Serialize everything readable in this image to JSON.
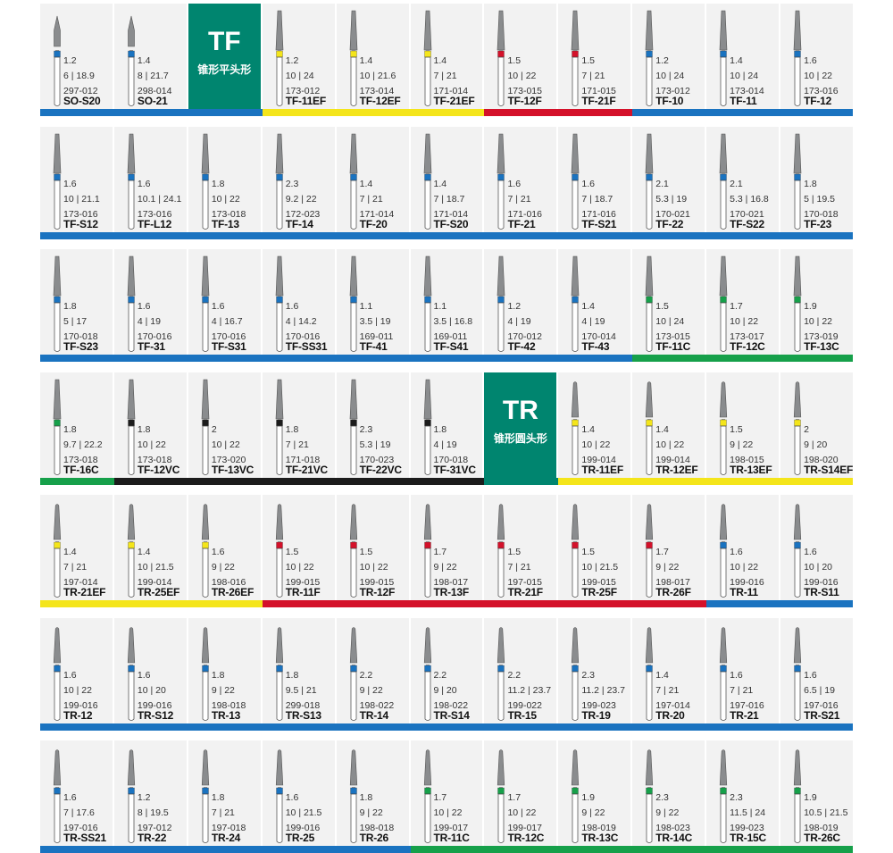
{
  "colors": {
    "blue": "#1a73c0",
    "yellow": "#f4e51b",
    "red": "#d4112a",
    "green": "#16a04a",
    "black": "#1c1c1c",
    "teal": "#00856f"
  },
  "banners": {
    "tf": {
      "title": "TF",
      "subtitle": "锥形平头形"
    },
    "tr": {
      "title": "TR",
      "subtitle": "锥形圆头形"
    }
  },
  "rows": [
    {
      "bars": [
        {
          "color": "blue",
          "span": 3
        },
        {
          "color": "yellow",
          "span": 3
        },
        {
          "color": "red",
          "span": 2
        },
        {
          "color": "blue",
          "span": 3
        }
      ],
      "cells": [
        {
          "type": "bur",
          "shape": "cone",
          "band": "blue",
          "size": "1.2",
          "dims": "6 | 18.9",
          "ref": "297-012",
          "code": "SO-S20"
        },
        {
          "type": "bur",
          "shape": "cone",
          "band": "blue",
          "size": "1.4",
          "dims": "8 | 21.7",
          "ref": "298-014",
          "code": "SO-21"
        },
        {
          "type": "banner",
          "key": "tf"
        },
        {
          "type": "bur",
          "shape": "taper",
          "band": "yellow",
          "size": "1.2",
          "dims": "10 | 24",
          "ref": "173-012",
          "code": "TF-11EF"
        },
        {
          "type": "bur",
          "shape": "taper",
          "band": "yellow",
          "size": "1.4",
          "dims": "10 | 21.6",
          "ref": "173-014",
          "code": "TF-12EF"
        },
        {
          "type": "bur",
          "shape": "taper",
          "band": "yellow",
          "size": "1.4",
          "dims": "7 | 21",
          "ref": "171-014",
          "code": "TF-21EF"
        },
        {
          "type": "bur",
          "shape": "taper",
          "band": "red",
          "size": "1.5",
          "dims": "10 | 22",
          "ref": "173-015",
          "code": "TF-12F"
        },
        {
          "type": "bur",
          "shape": "taper",
          "band": "red",
          "size": "1.5",
          "dims": "7 | 21",
          "ref": "171-015",
          "code": "TF-21F"
        },
        {
          "type": "bur",
          "shape": "taper",
          "band": "blue",
          "size": "1.2",
          "dims": "10 | 24",
          "ref": "173-012",
          "code": "TF-10"
        },
        {
          "type": "bur",
          "shape": "taper",
          "band": "blue",
          "size": "1.4",
          "dims": "10 | 24",
          "ref": "173-014",
          "code": "TF-11"
        },
        {
          "type": "bur",
          "shape": "taper",
          "band": "blue",
          "size": "1.6",
          "dims": "10 | 22",
          "ref": "173-016",
          "code": "TF-12"
        }
      ]
    },
    {
      "bars": [
        {
          "color": "blue",
          "span": 11
        }
      ],
      "cells": [
        {
          "type": "bur",
          "shape": "taper",
          "band": "blue",
          "size": "1.6",
          "dims": "10 | 21.1",
          "ref": "173-016",
          "code": "TF-S12"
        },
        {
          "type": "bur",
          "shape": "taper",
          "band": "blue",
          "size": "1.6",
          "dims": "10.1 | 24.1",
          "ref": "173-016",
          "code": "TF-L12"
        },
        {
          "type": "bur",
          "shape": "taper",
          "band": "blue",
          "size": "1.8",
          "dims": "10 | 22",
          "ref": "173-018",
          "code": "TF-13"
        },
        {
          "type": "bur",
          "shape": "taper",
          "band": "blue",
          "size": "2.3",
          "dims": "9.2 | 22",
          "ref": "172-023",
          "code": "TF-14"
        },
        {
          "type": "bur",
          "shape": "taper",
          "band": "blue",
          "size": "1.4",
          "dims": "7 | 21",
          "ref": "171-014",
          "code": "TF-20"
        },
        {
          "type": "bur",
          "shape": "taper",
          "band": "blue",
          "size": "1.4",
          "dims": "7 | 18.7",
          "ref": "171-014",
          "code": "TF-S20"
        },
        {
          "type": "bur",
          "shape": "taper",
          "band": "blue",
          "size": "1.6",
          "dims": "7 | 21",
          "ref": "171-016",
          "code": "TF-21"
        },
        {
          "type": "bur",
          "shape": "taper",
          "band": "blue",
          "size": "1.6",
          "dims": "7 | 18.7",
          "ref": "171-016",
          "code": "TF-S21"
        },
        {
          "type": "bur",
          "shape": "taper",
          "band": "blue",
          "size": "2.1",
          "dims": "5.3 | 19",
          "ref": "170-021",
          "code": "TF-22"
        },
        {
          "type": "bur",
          "shape": "taper",
          "band": "blue",
          "size": "2.1",
          "dims": "5.3 | 16.8",
          "ref": "170-021",
          "code": "TF-S22"
        },
        {
          "type": "bur",
          "shape": "taper",
          "band": "blue",
          "size": "1.8",
          "dims": "5 | 19.5",
          "ref": "170-018",
          "code": "TF-23"
        }
      ]
    },
    {
      "bars": [
        {
          "color": "blue",
          "span": 8
        },
        {
          "color": "green",
          "span": 3
        }
      ],
      "cells": [
        {
          "type": "bur",
          "shape": "taper",
          "band": "blue",
          "size": "1.8",
          "dims": "5 | 17",
          "ref": "170-018",
          "code": "TF-S23"
        },
        {
          "type": "bur",
          "shape": "taper",
          "band": "blue",
          "size": "1.6",
          "dims": "4 | 19",
          "ref": "170-016",
          "code": "TF-31"
        },
        {
          "type": "bur",
          "shape": "taper",
          "band": "blue",
          "size": "1.6",
          "dims": "4 | 16.7",
          "ref": "170-016",
          "code": "TF-S31"
        },
        {
          "type": "bur",
          "shape": "taper",
          "band": "blue",
          "size": "1.6",
          "dims": "4 | 14.2",
          "ref": "170-016",
          "code": "TF-SS31"
        },
        {
          "type": "bur",
          "shape": "taper",
          "band": "blue",
          "size": "1.1",
          "dims": "3.5 | 19",
          "ref": "169-011",
          "code": "TF-41"
        },
        {
          "type": "bur",
          "shape": "taper",
          "band": "blue",
          "size": "1.1",
          "dims": "3.5 | 16.8",
          "ref": "169-011",
          "code": "TF-S41"
        },
        {
          "type": "bur",
          "shape": "taper",
          "band": "blue",
          "size": "1.2",
          "dims": "4 | 19",
          "ref": "170-012",
          "code": "TF-42"
        },
        {
          "type": "bur",
          "shape": "taper",
          "band": "blue",
          "size": "1.4",
          "dims": "4 | 19",
          "ref": "170-014",
          "code": "TF-43"
        },
        {
          "type": "bur",
          "shape": "taper",
          "band": "green",
          "size": "1.5",
          "dims": "10 | 24",
          "ref": "173-015",
          "code": "TF-11C"
        },
        {
          "type": "bur",
          "shape": "taper",
          "band": "green",
          "size": "1.7",
          "dims": "10 | 22",
          "ref": "173-017",
          "code": "TF-12C"
        },
        {
          "type": "bur",
          "shape": "taper",
          "band": "green",
          "size": "1.9",
          "dims": "10 | 22",
          "ref": "173-019",
          "code": "TF-13C"
        }
      ]
    },
    {
      "bars": [
        {
          "color": "green",
          "span": 1
        },
        {
          "color": "black",
          "span": 5
        },
        {
          "color": "teal",
          "span": 1
        },
        {
          "color": "yellow",
          "span": 4
        }
      ],
      "cells": [
        {
          "type": "bur",
          "shape": "taper",
          "band": "green",
          "size": "1.8",
          "dims": "9.7 | 22.2",
          "ref": "173-018",
          "code": "TF-16C"
        },
        {
          "type": "bur",
          "shape": "taper",
          "band": "black",
          "size": "1.8",
          "dims": "10 | 22",
          "ref": "173-018",
          "code": "TF-12VC"
        },
        {
          "type": "bur",
          "shape": "taper",
          "band": "black",
          "size": "2",
          "dims": "10 | 22",
          "ref": "173-020",
          "code": "TF-13VC"
        },
        {
          "type": "bur",
          "shape": "taper",
          "band": "black",
          "size": "1.8",
          "dims": "7 | 21",
          "ref": "171-018",
          "code": "TF-21VC"
        },
        {
          "type": "bur",
          "shape": "taper",
          "band": "black",
          "size": "2.3",
          "dims": "5.3 | 19",
          "ref": "170-023",
          "code": "TF-22VC"
        },
        {
          "type": "bur",
          "shape": "taper",
          "band": "black",
          "size": "1.8",
          "dims": "4 | 19",
          "ref": "170-018",
          "code": "TF-31VC"
        },
        {
          "type": "banner",
          "key": "tr"
        },
        {
          "type": "bur",
          "shape": "round",
          "band": "yellow",
          "size": "1.4",
          "dims": "10 | 22",
          "ref": "199-014",
          "code": "TR-11EF"
        },
        {
          "type": "bur",
          "shape": "round",
          "band": "yellow",
          "size": "1.4",
          "dims": "10 | 22",
          "ref": "199-014",
          "code": "TR-12EF"
        },
        {
          "type": "bur",
          "shape": "round",
          "band": "yellow",
          "size": "1.5",
          "dims": "9 | 22",
          "ref": "198-015",
          "code": "TR-13EF"
        },
        {
          "type": "bur",
          "shape": "round",
          "band": "yellow",
          "size": "2",
          "dims": "9 | 20",
          "ref": "198-020",
          "code": "TR-S14EF"
        }
      ]
    },
    {
      "bars": [
        {
          "color": "yellow",
          "span": 3
        },
        {
          "color": "red",
          "span": 6
        },
        {
          "color": "blue",
          "span": 2
        }
      ],
      "cells": [
        {
          "type": "bur",
          "shape": "round",
          "band": "yellow",
          "size": "1.4",
          "dims": "7 | 21",
          "ref": "197-014",
          "code": "TR-21EF"
        },
        {
          "type": "bur",
          "shape": "round",
          "band": "yellow",
          "size": "1.4",
          "dims": "10 | 21.5",
          "ref": "199-014",
          "code": "TR-25EF"
        },
        {
          "type": "bur",
          "shape": "round",
          "band": "yellow",
          "size": "1.6",
          "dims": "9 | 22",
          "ref": "198-016",
          "code": "TR-26EF"
        },
        {
          "type": "bur",
          "shape": "round",
          "band": "red",
          "size": "1.5",
          "dims": "10 | 22",
          "ref": "199-015",
          "code": "TR-11F"
        },
        {
          "type": "bur",
          "shape": "round",
          "band": "red",
          "size": "1.5",
          "dims": "10 | 22",
          "ref": "199-015",
          "code": "TR-12F"
        },
        {
          "type": "bur",
          "shape": "round",
          "band": "red",
          "size": "1.7",
          "dims": "9 | 22",
          "ref": "198-017",
          "code": "TR-13F"
        },
        {
          "type": "bur",
          "shape": "round",
          "band": "red",
          "size": "1.5",
          "dims": "7 | 21",
          "ref": "197-015",
          "code": "TR-21F"
        },
        {
          "type": "bur",
          "shape": "round",
          "band": "red",
          "size": "1.5",
          "dims": "10 | 21.5",
          "ref": "199-015",
          "code": "TR-25F"
        },
        {
          "type": "bur",
          "shape": "round",
          "band": "red",
          "size": "1.7",
          "dims": "9 | 22",
          "ref": "198-017",
          "code": "TR-26F"
        },
        {
          "type": "bur",
          "shape": "round",
          "band": "blue",
          "size": "1.6",
          "dims": "10 | 22",
          "ref": "199-016",
          "code": "TR-11"
        },
        {
          "type": "bur",
          "shape": "round",
          "band": "blue",
          "size": "1.6",
          "dims": "10 | 20",
          "ref": "199-016",
          "code": "TR-S11"
        }
      ]
    },
    {
      "bars": [
        {
          "color": "blue",
          "span": 11
        }
      ],
      "cells": [
        {
          "type": "bur",
          "shape": "round",
          "band": "blue",
          "size": "1.6",
          "dims": "10 | 22",
          "ref": "199-016",
          "code": "TR-12"
        },
        {
          "type": "bur",
          "shape": "round",
          "band": "blue",
          "size": "1.6",
          "dims": "10 | 20",
          "ref": "199-016",
          "code": "TR-S12"
        },
        {
          "type": "bur",
          "shape": "round",
          "band": "blue",
          "size": "1.8",
          "dims": "9 | 22",
          "ref": "198-018",
          "code": "TR-13"
        },
        {
          "type": "bur",
          "shape": "round",
          "band": "blue",
          "size": "1.8",
          "dims": "9.5 | 21",
          "ref": "299-018",
          "code": "TR-S13"
        },
        {
          "type": "bur",
          "shape": "round",
          "band": "blue",
          "size": "2.2",
          "dims": "9 | 22",
          "ref": "198-022",
          "code": "TR-14"
        },
        {
          "type": "bur",
          "shape": "round",
          "band": "blue",
          "size": "2.2",
          "dims": "9 | 20",
          "ref": "198-022",
          "code": "TR-S14"
        },
        {
          "type": "bur",
          "shape": "round",
          "band": "blue",
          "size": "2.2",
          "dims": "11.2 | 23.7",
          "ref": "199-022",
          "code": "TR-15"
        },
        {
          "type": "bur",
          "shape": "round",
          "band": "blue",
          "size": "2.3",
          "dims": "11.2 | 23.7",
          "ref": "199-023",
          "code": "TR-19"
        },
        {
          "type": "bur",
          "shape": "round",
          "band": "blue",
          "size": "1.4",
          "dims": "7 | 21",
          "ref": "197-014",
          "code": "TR-20"
        },
        {
          "type": "bur",
          "shape": "round",
          "band": "blue",
          "size": "1.6",
          "dims": "7 | 21",
          "ref": "197-016",
          "code": "TR-21"
        },
        {
          "type": "bur",
          "shape": "round",
          "band": "blue",
          "size": "1.6",
          "dims": "6.5 | 19",
          "ref": "197-016",
          "code": "TR-S21"
        }
      ]
    },
    {
      "bars": [
        {
          "color": "blue",
          "span": 5
        },
        {
          "color": "green",
          "span": 6
        }
      ],
      "cells": [
        {
          "type": "bur",
          "shape": "round",
          "band": "blue",
          "size": "1.6",
          "dims": "7 | 17.6",
          "ref": "197-016",
          "code": "TR-SS21"
        },
        {
          "type": "bur",
          "shape": "round",
          "band": "blue",
          "size": "1.2",
          "dims": "8 | 19.5",
          "ref": "197-012",
          "code": "TR-22"
        },
        {
          "type": "bur",
          "shape": "round",
          "band": "blue",
          "size": "1.8",
          "dims": "7 | 21",
          "ref": "197-018",
          "code": "TR-24"
        },
        {
          "type": "bur",
          "shape": "round",
          "band": "blue",
          "size": "1.6",
          "dims": "10 | 21.5",
          "ref": "199-016",
          "code": "TR-25"
        },
        {
          "type": "bur",
          "shape": "round",
          "band": "blue",
          "size": "1.8",
          "dims": "9 | 22",
          "ref": "198-018",
          "code": "TR-26"
        },
        {
          "type": "bur",
          "shape": "round",
          "band": "green",
          "size": "1.7",
          "dims": "10 | 22",
          "ref": "199-017",
          "code": "TR-11C"
        },
        {
          "type": "bur",
          "shape": "round",
          "band": "green",
          "size": "1.7",
          "dims": "10 | 22",
          "ref": "199-017",
          "code": "TR-12C"
        },
        {
          "type": "bur",
          "shape": "round",
          "band": "green",
          "size": "1.9",
          "dims": "9 | 22",
          "ref": "198-019",
          "code": "TR-13C"
        },
        {
          "type": "bur",
          "shape": "round",
          "band": "green",
          "size": "2.3",
          "dims": "9 | 22",
          "ref": "198-023",
          "code": "TR-14C"
        },
        {
          "type": "bur",
          "shape": "round",
          "band": "green",
          "size": "2.3",
          "dims": "11.5 | 24",
          "ref": "199-023",
          "code": "TR-15C"
        },
        {
          "type": "bur",
          "shape": "round",
          "band": "green",
          "size": "1.9",
          "dims": "10.5 | 21.5",
          "ref": "198-019",
          "code": "TR-26C"
        }
      ]
    }
  ]
}
